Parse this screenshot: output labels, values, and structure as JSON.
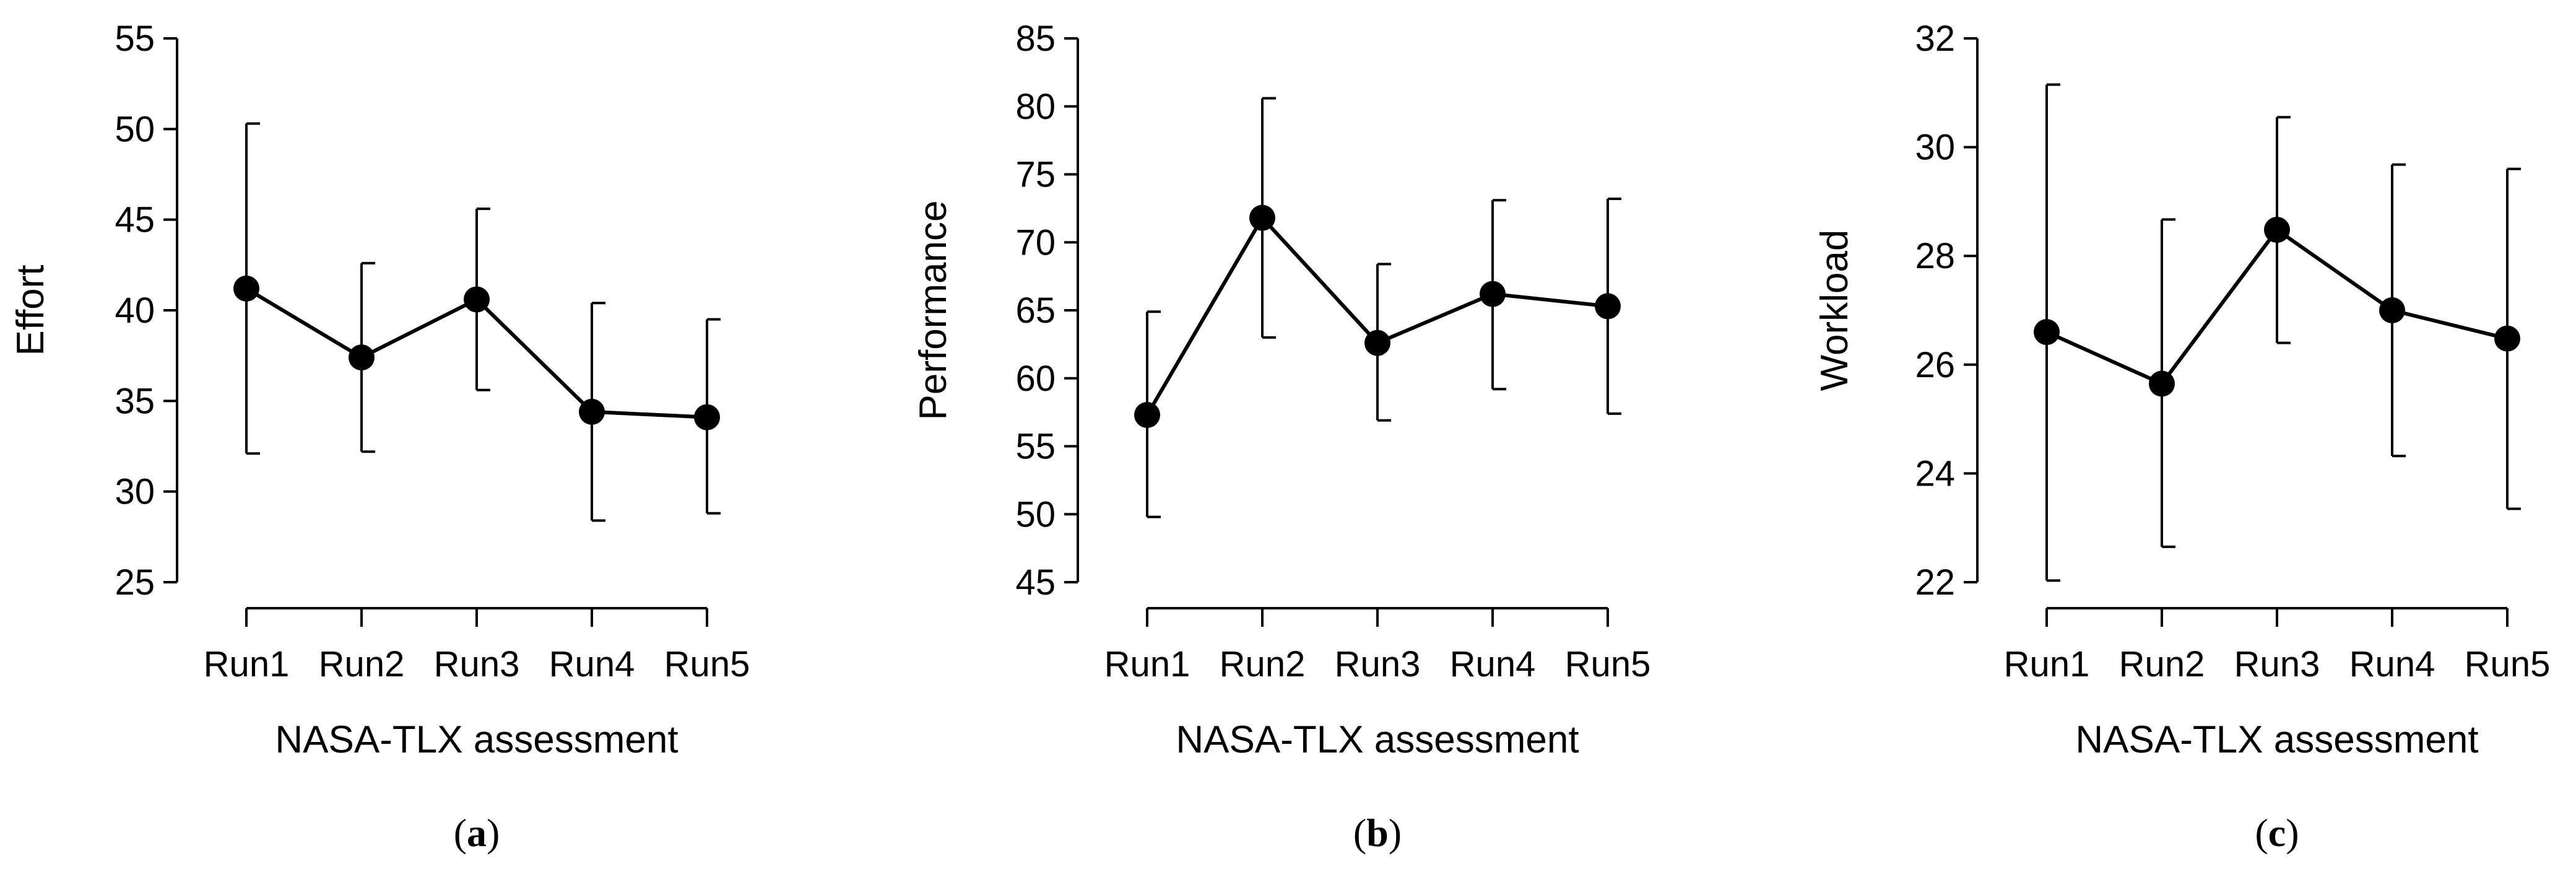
{
  "chart_data": [
    {
      "type": "line",
      "panel_label": "a",
      "xlabel": "NASA-TLX assessment",
      "ylabel": "Effort",
      "categories": [
        "Run1",
        "Run2",
        "Run3",
        "Run4",
        "Run5"
      ],
      "values": [
        41.2,
        37.4,
        40.6,
        34.4,
        34.1
      ],
      "error_low": [
        32.1,
        32.2,
        35.6,
        28.4,
        28.8
      ],
      "error_high": [
        50.3,
        42.6,
        45.6,
        40.4,
        39.5
      ],
      "ylim": [
        25,
        55
      ],
      "yticks": [
        25,
        30,
        35,
        40,
        45,
        50,
        55
      ],
      "ytick_labels": [
        "25",
        "30",
        "35",
        "40",
        "45",
        "50",
        "55"
      ],
      "grid": false
    },
    {
      "type": "line",
      "panel_label": "b",
      "xlabel": "NASA-TLX assessment",
      "ylabel": "Performance",
      "categories": [
        "Run1",
        "Run2",
        "Run3",
        "Run4",
        "Run5"
      ],
      "values": [
        57.3,
        71.8,
        62.6,
        66.2,
        65.3
      ],
      "error_low": [
        49.8,
        63.0,
        56.9,
        59.2,
        57.4
      ],
      "error_high": [
        64.9,
        80.6,
        68.4,
        73.1,
        73.2
      ],
      "ylim": [
        45,
        85
      ],
      "yticks": [
        45,
        50,
        55,
        60,
        65,
        70,
        75,
        80,
        85
      ],
      "ytick_labels": [
        "45",
        "50",
        "55",
        "60",
        "65",
        "70",
        "75",
        "80",
        "85"
      ],
      "grid": false
    },
    {
      "type": "line",
      "panel_label": "c",
      "xlabel": "NASA-TLX assessment",
      "ylabel": "Workload",
      "categories": [
        "Run1",
        "Run2",
        "Run3",
        "Run4",
        "Run5"
      ],
      "values": [
        26.6,
        25.65,
        28.48,
        27.0,
        26.48
      ],
      "error_low": [
        22.03,
        22.65,
        26.4,
        24.32,
        23.35
      ],
      "error_high": [
        31.15,
        28.67,
        30.55,
        29.68,
        29.6
      ],
      "ylim": [
        22,
        32
      ],
      "yticks": [
        22,
        24,
        26,
        28,
        30,
        32
      ],
      "ytick_labels": [
        "22",
        "24",
        "26",
        "28",
        "30",
        "32"
      ],
      "grid": false
    }
  ]
}
